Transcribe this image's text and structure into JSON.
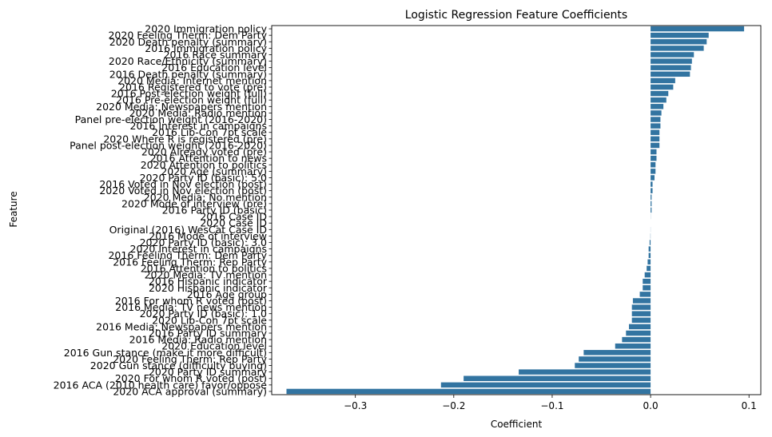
{
  "chart_data": {
    "type": "bar",
    "orientation": "horizontal",
    "title": "Logistic Regression Feature Coefficients",
    "xlabel": "Coefficient",
    "ylabel": "Feature",
    "xlim": [
      -0.385,
      0.112
    ],
    "xticks": [
      -0.3,
      -0.2,
      -0.1,
      0.0,
      0.1
    ],
    "xtick_labels": [
      "−0.3",
      "−0.2",
      "−0.1",
      "0.0",
      "0.1"
    ],
    "bar_color": "#3274a1",
    "grid": false,
    "categories": [
      "2020 Immigration policy",
      "2020 Feeling Therm: Dem Party",
      "2020 Death penalty (summary)",
      "2016 Immigration policy",
      "2016 Race summary",
      "2020 Race/Ethnicity (summary)",
      "2016 Education level",
      "2016 Death penalty (summary)",
      "2020 Media: Internet mention",
      "2016 Registered to vote (pre)",
      "2016 Post-election weight (full)",
      "2016 Pre-election weight (full)",
      "2020 Media: Newspapers mention",
      "2020 Media: Radio mention",
      "Panel pre-election weight (2016-2020)",
      "2016 Interest in campaigns",
      "2016 Lib-Con 7pt scale",
      "2020 Where R is registered (pre)",
      "Panel post-election weight (2016-2020)",
      "2020 Already voted (pre)",
      "2016 Attention to news",
      "2020 Attention to politics",
      "2020 Age (summary)",
      "2020 Party ID (basic): 5.0",
      "2016 Voted in Nov election (post)",
      "2020 Voted in Nov election (post)",
      "2020 Media: No mention",
      "2020 Mode of interview (pre)",
      "2016 Party ID (basic)",
      "2016 Case ID",
      "2020 Case ID",
      "Original (2016) WesCat Case ID",
      "2016 Mode of interview",
      "2020 Party ID (basic): 3.0",
      "2020 Interest in campaigns",
      "2016 Feeling Therm: Dem Party",
      "2016 Feeling Therm: Rep Party",
      "2016 Attention to politics",
      "2020 Media: TV mention",
      "2016 Hispanic indicator",
      "2020 Hispanic indicator",
      "2016 Age group",
      "2016 For whom R voted (post)",
      "2016 Media: TV news mention",
      "2020 Party ID (basic): 1.0",
      "2020 Lib-Con 7pt scale",
      "2016 Media: Newspapers mention",
      "2016 Party ID summary",
      "2016 Media: Radio mention",
      "2020 Education level",
      "2016 Gun stance (make it more difficult)",
      "2020 Feeling Therm: Rep Party",
      "2020 Gun stance (difficulty buying)",
      "2020 Party ID summary",
      "2020 For whom R voted (post)",
      "2016 ACA (2010 health care) favor/oppose",
      "2020 ACA approval (summary)"
    ],
    "values": [
      0.095,
      0.059,
      0.057,
      0.054,
      0.044,
      0.042,
      0.041,
      0.04,
      0.025,
      0.023,
      0.018,
      0.016,
      0.013,
      0.011,
      0.01,
      0.01,
      0.009,
      0.009,
      0.009,
      0.006,
      0.006,
      0.005,
      0.005,
      0.004,
      0.002,
      0.002,
      0.001,
      0.001,
      0.001,
      0.0001,
      0.0,
      -0.0001,
      -0.0002,
      -0.001,
      -0.002,
      -0.002,
      -0.003,
      -0.004,
      -0.006,
      -0.008,
      -0.008,
      -0.011,
      -0.018,
      -0.019,
      -0.019,
      -0.019,
      -0.022,
      -0.025,
      -0.029,
      -0.036,
      -0.068,
      -0.073,
      -0.077,
      -0.134,
      -0.19,
      -0.213,
      -0.37
    ]
  }
}
